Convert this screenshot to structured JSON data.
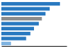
{
  "chart_data": {
    "type": "bar",
    "orientation": "horizontal",
    "categories": [
      null,
      null,
      null,
      null,
      null,
      null,
      null,
      null,
      null
    ],
    "values": [
      0.97,
      0.8,
      0.73,
      0.67,
      0.62,
      0.54,
      0.48,
      0.41,
      0.16
    ],
    "colors": [
      "#2979c0",
      "#2979c0",
      "#2979c0",
      "#8c8c8c",
      "#2979c0",
      "#2979c0",
      "#2979c0",
      "#2979c0",
      "#7fb3e0"
    ],
    "xlim": [
      0,
      1.08
    ],
    "tick_labels": false,
    "grid": false
  }
}
